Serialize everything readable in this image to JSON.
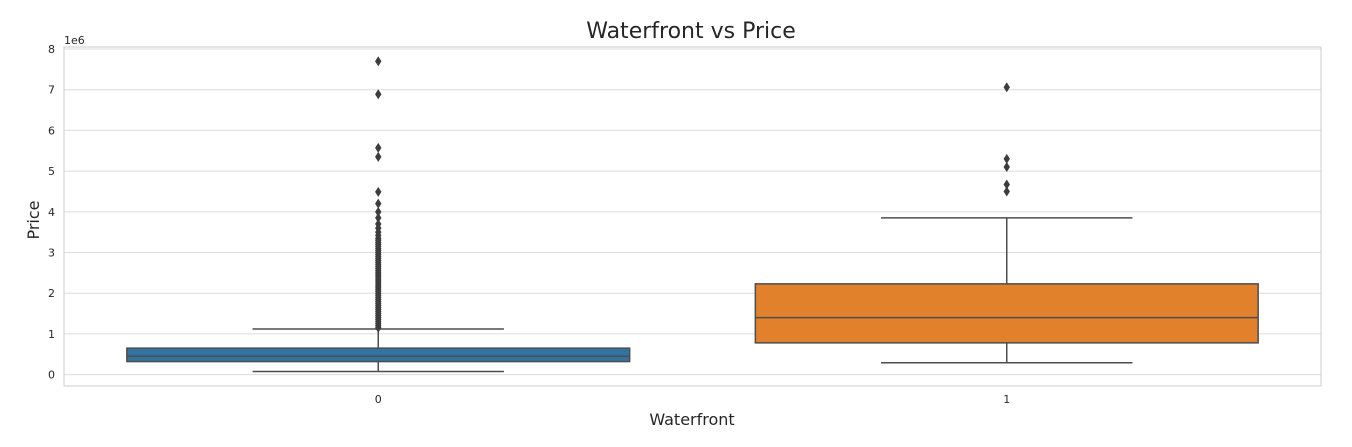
{
  "chart_data": {
    "type": "box",
    "title": "Waterfront vs Price",
    "xlabel": "Waterfront",
    "ylabel": "Price",
    "y_offset_label": "1e6",
    "ylim": [
      -0.28,
      8.05
    ],
    "yticks": [
      "0",
      "1",
      "2",
      "3",
      "4",
      "5",
      "6",
      "7",
      "8"
    ],
    "grid": true,
    "categories": [
      "0",
      "1"
    ],
    "boxes": [
      {
        "category": "0",
        "color": "#3274a1",
        "whisker_low": 0.075,
        "q1": 0.32,
        "median": 0.45,
        "q3": 0.65,
        "whisker_high": 1.12,
        "outliers": [
          7.7,
          6.89,
          5.57,
          5.35,
          4.49,
          4.2,
          4.0,
          3.85,
          3.7,
          3.6,
          3.5,
          3.42,
          3.35,
          3.3,
          3.25,
          3.2,
          3.15,
          3.1,
          3.05,
          3.0,
          2.95,
          2.9,
          2.85,
          2.8,
          2.75,
          2.7,
          2.65,
          2.6,
          2.55,
          2.5,
          2.45,
          2.4,
          2.35,
          2.3,
          2.25,
          2.2,
          2.15,
          2.1,
          2.05,
          2.0,
          1.95,
          1.9,
          1.85,
          1.8,
          1.75,
          1.7,
          1.65,
          1.6,
          1.55,
          1.5,
          1.45,
          1.4,
          1.35,
          1.3,
          1.25,
          1.2,
          1.15
        ]
      },
      {
        "category": "1",
        "color": "#e1812c",
        "whisker_low": 0.29,
        "q1": 0.78,
        "median": 1.4,
        "q3": 2.23,
        "whisker_high": 3.85,
        "outliers": [
          7.06,
          5.3,
          5.1,
          4.67,
          4.5
        ]
      }
    ]
  }
}
